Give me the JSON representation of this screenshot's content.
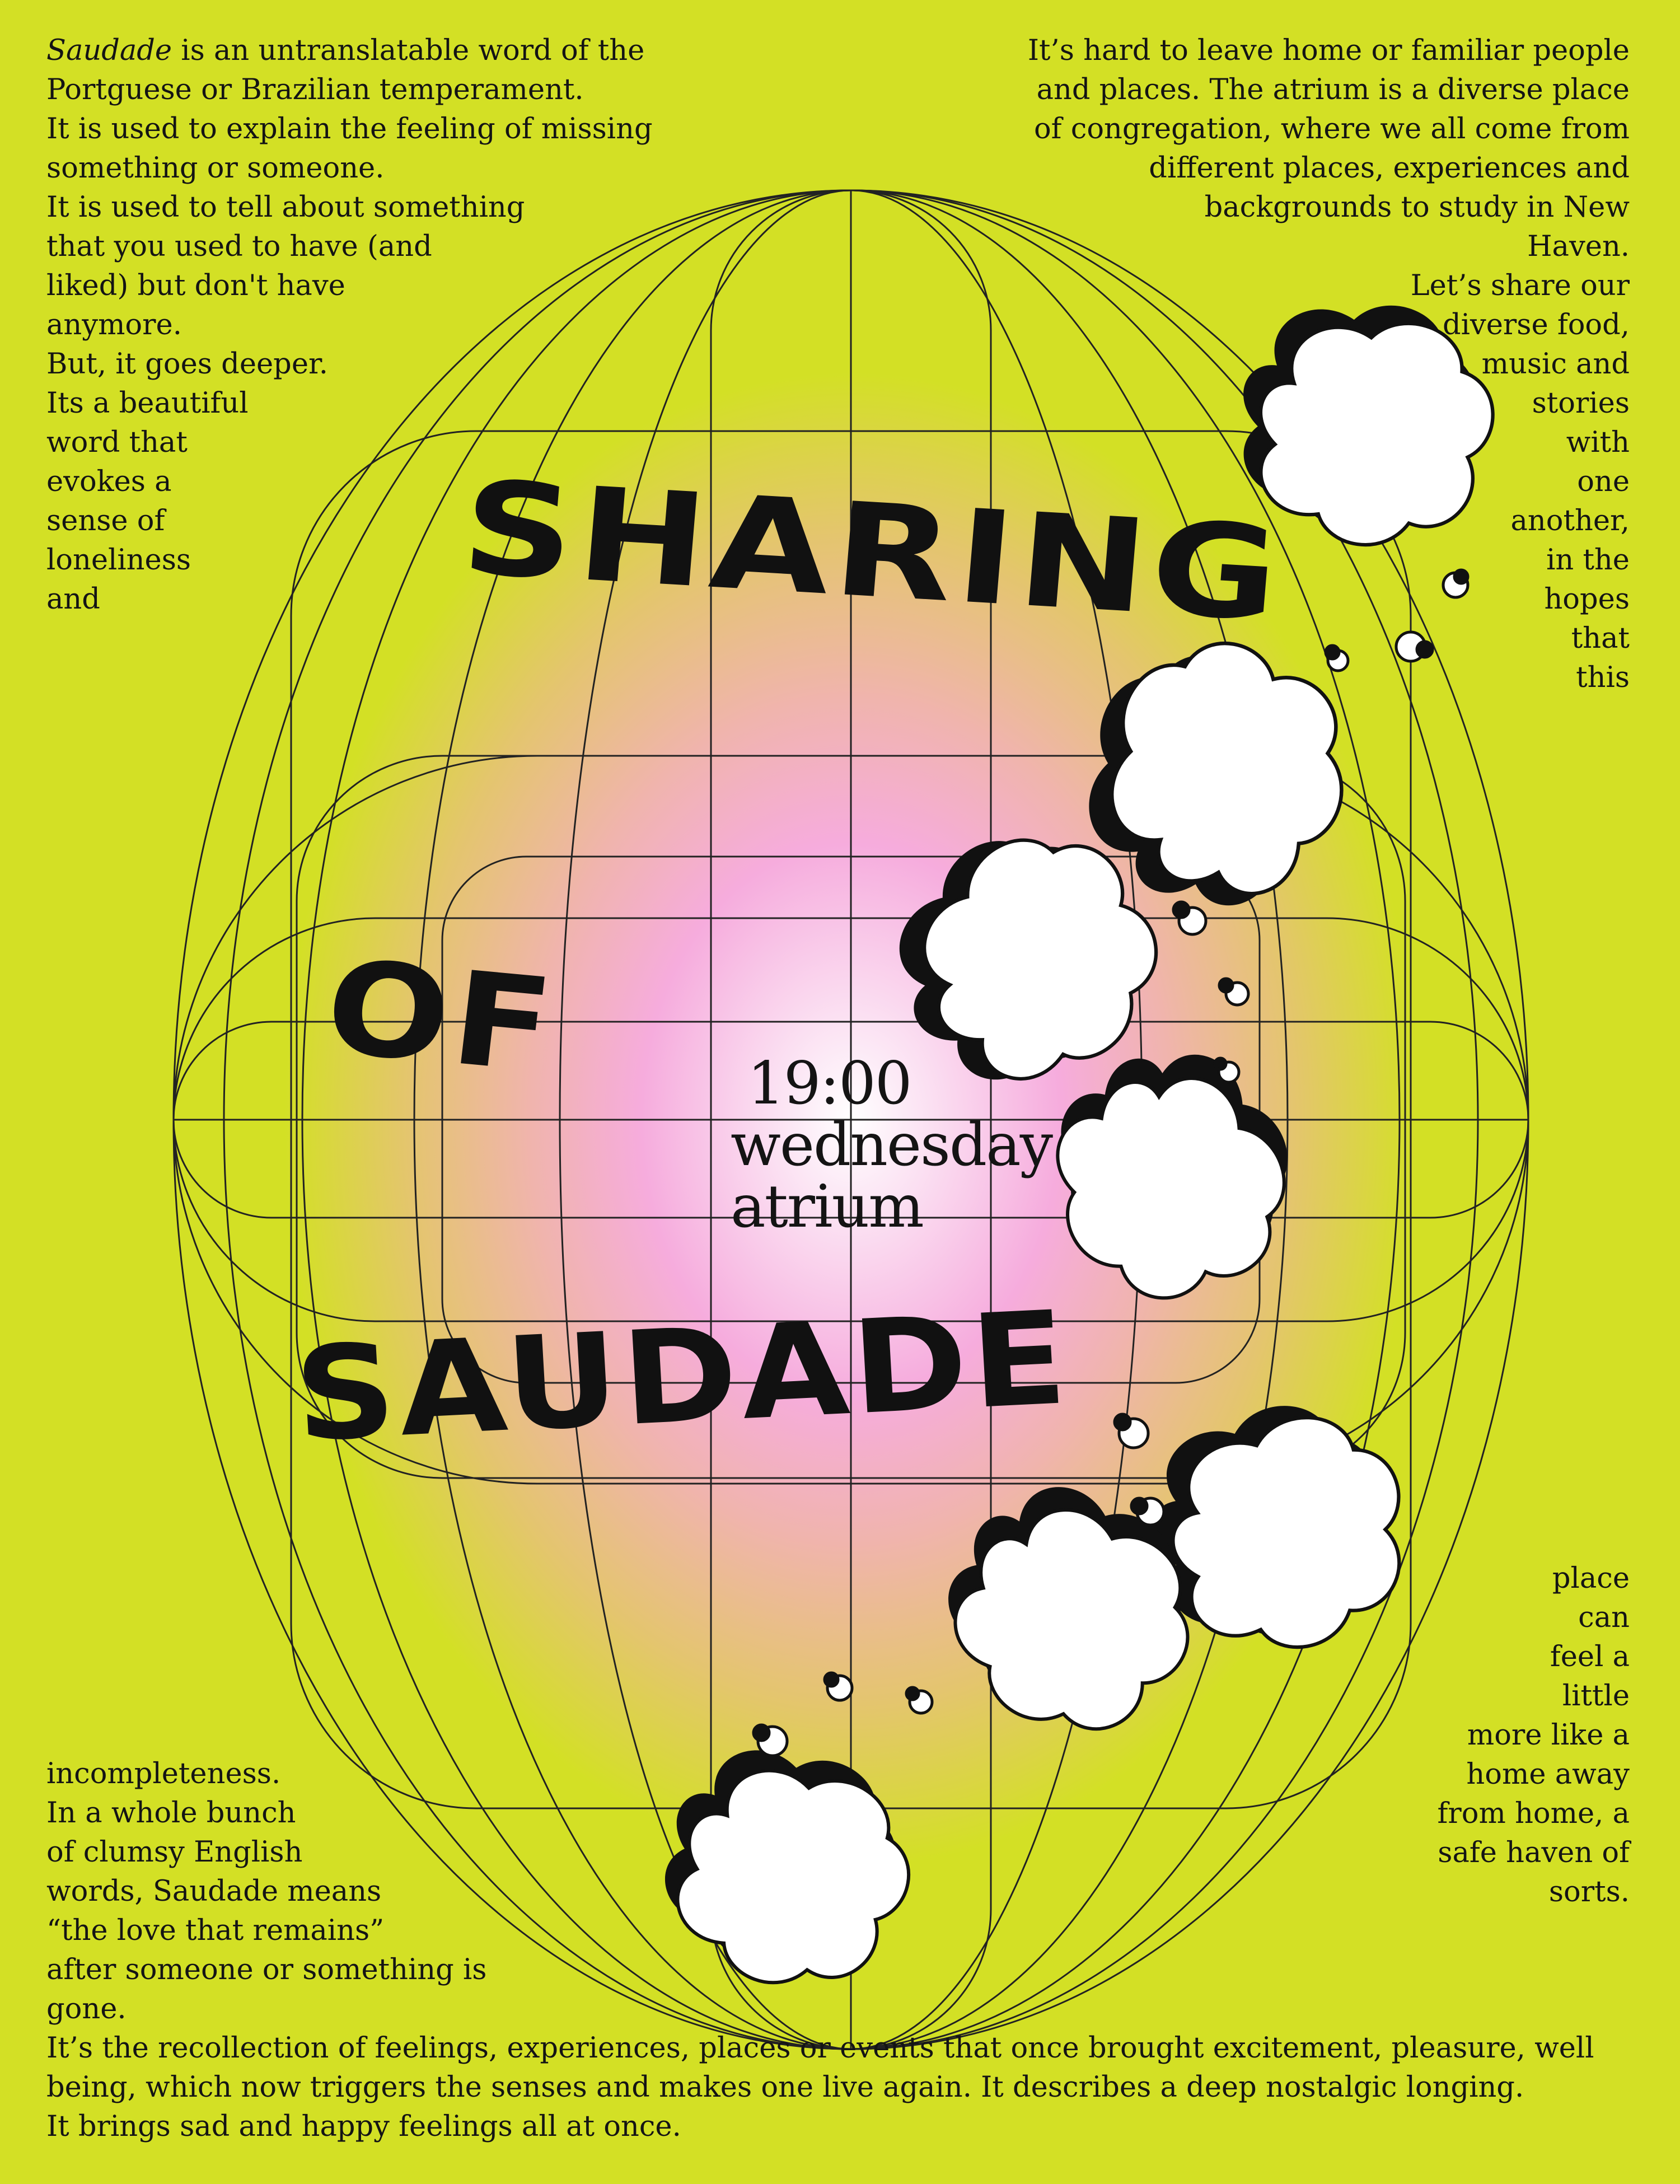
{
  "intro_left": [
    {
      "em": "Saudade",
      "text": " is an untranslatable word of the"
    },
    {
      "text": "Portguese or Brazilian temperament."
    },
    {
      "text": "It is used to explain the feeling of missing"
    },
    {
      "text": "something or someone."
    },
    {
      "text": "It is used to tell about something"
    },
    {
      "text": "that you used to have (and"
    },
    {
      "text": "liked) but don't have"
    },
    {
      "text": "anymore."
    },
    {
      "text": "But, it goes deeper."
    },
    {
      "text": "Its a beautiful"
    },
    {
      "text": "word that"
    },
    {
      "text": "evokes a"
    },
    {
      "text": "sense of"
    },
    {
      "text": "loneliness"
    },
    {
      "text": "and"
    }
  ],
  "intro_right": [
    "It’s hard to leave home or familiar people",
    "and places. The atrium is a diverse place",
    "of congregation, where we all come from",
    "different places, experiences and",
    "backgrounds to study in New",
    "Haven.",
    "Let’s share our",
    "diverse food,",
    "music and",
    "stories",
    "with",
    "one",
    "another,",
    "in the",
    "hopes",
    "that",
    "this"
  ],
  "continue_right": [
    "place",
    "can",
    "feel a",
    "little",
    "more like a",
    "home away",
    "from home, a",
    "safe haven of",
    "sorts."
  ],
  "outro_left": [
    "incompleteness.",
    "In a whole bunch",
    "of clumsy English",
    "words, Saudade means",
    "“the love that remains”",
    "after someone or something is",
    "gone.",
    "It’s the recollection of feelings, experiences, places or events that once brought excitement, pleasure, well",
    "being, which now triggers the senses and makes one live again. It describes a deep nostalgic longing.",
    "It brings sad and happy feelings all at once."
  ],
  "title": {
    "line1": "SHARING",
    "line2": "OF",
    "line3": "SAUDADE"
  },
  "event": {
    "time": "19:00",
    "day": "wednesday",
    "place": "atrium"
  },
  "colors": {
    "background": "#d3e025",
    "glow_center": "#ffffff",
    "glow_pink": "#f6acdd",
    "ink": "#111111"
  }
}
